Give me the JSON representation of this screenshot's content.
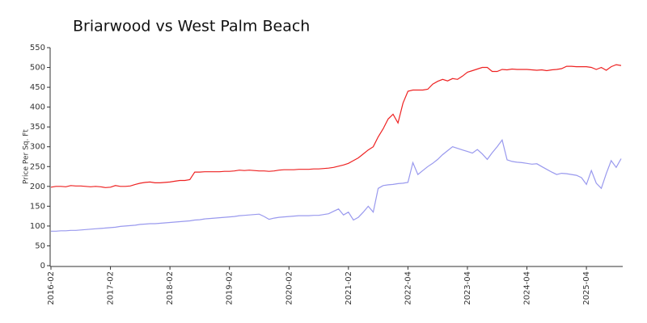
{
  "chart_data": {
    "type": "line",
    "title": "Briarwood vs West Palm Beach",
    "y_label": "Price Per Sq. Ft",
    "categories": [
      "2016-02",
      null,
      null,
      null,
      null,
      null,
      null,
      null,
      null,
      null,
      null,
      null,
      "2017-02",
      null,
      null,
      null,
      null,
      null,
      null,
      null,
      null,
      null,
      null,
      null,
      "2018-02",
      null,
      null,
      null,
      null,
      null,
      null,
      null,
      null,
      null,
      null,
      null,
      "2019-02",
      null,
      null,
      null,
      null,
      null,
      null,
      null,
      null,
      null,
      null,
      null,
      "2020-02",
      null,
      null,
      null,
      null,
      null,
      null,
      null,
      null,
      null,
      null,
      null,
      "2021-02",
      null,
      null,
      null,
      null,
      null,
      null,
      null,
      null,
      null,
      null,
      null,
      "2022-04",
      null,
      null,
      null,
      null,
      null,
      null,
      null,
      null,
      null,
      null,
      null,
      "2023-04",
      null,
      null,
      null,
      null,
      null,
      null,
      null,
      null,
      null,
      null,
      null,
      "2024-04",
      null,
      null,
      null,
      null,
      null,
      null,
      null,
      null,
      null,
      null,
      null,
      "2025-04",
      null,
      null,
      null,
      null,
      null,
      null,
      null
    ],
    "series": [
      {
        "color": "#ee2222",
        "values": [
          198,
          200,
          200,
          199,
          202,
          201,
          201,
          200,
          199,
          200,
          199,
          197,
          198,
          202,
          200,
          200,
          201,
          205,
          208,
          210,
          211,
          209,
          209,
          210,
          211,
          213,
          215,
          215,
          217,
          236,
          236,
          237,
          237,
          237,
          237,
          238,
          238,
          239,
          241,
          240,
          241,
          240,
          239,
          239,
          238,
          239,
          241,
          242,
          242,
          242,
          243,
          243,
          243,
          244,
          244,
          245,
          246,
          248,
          251,
          254,
          258,
          265,
          272,
          282,
          292,
          300,
          325,
          345,
          370,
          382,
          360,
          410,
          440,
          443,
          443,
          443,
          445,
          458,
          465,
          470,
          466,
          472,
          470,
          478,
          488,
          492,
          496,
          500,
          500,
          490,
          490,
          495,
          494,
          496,
          495,
          495,
          495,
          494,
          493,
          494,
          492,
          494,
          495,
          497,
          503,
          503,
          502,
          502,
          502,
          500,
          495,
          500,
          493,
          502,
          507,
          505
        ]
      },
      {
        "color": "#9999ee",
        "values": [
          87,
          87,
          88,
          88,
          89,
          89,
          90,
          91,
          92,
          93,
          94,
          95,
          96,
          97,
          99,
          100,
          101,
          102,
          104,
          105,
          106,
          106,
          107,
          108,
          109,
          110,
          111,
          112,
          113,
          115,
          116,
          118,
          119,
          120,
          121,
          122,
          123,
          124,
          126,
          127,
          128,
          129,
          130,
          124,
          117,
          120,
          122,
          123,
          124,
          125,
          126,
          126,
          126,
          127,
          127,
          129,
          131,
          137,
          143,
          128,
          135,
          115,
          122,
          135,
          150,
          135,
          195,
          202,
          204,
          205,
          207,
          208,
          210,
          260,
          230,
          240,
          250,
          258,
          268,
          280,
          290,
          300,
          296,
          292,
          288,
          284,
          293,
          282,
          268,
          285,
          300,
          317,
          267,
          263,
          261,
          260,
          258,
          256,
          257,
          250,
          243,
          236,
          230,
          233,
          232,
          230,
          228,
          222,
          205,
          240,
          208,
          195,
          232,
          265,
          248,
          270
        ]
      }
    ],
    "ylim": [
      0,
      550
    ],
    "yticks": [
      0,
      50,
      100,
      150,
      200,
      250,
      300,
      350,
      400,
      450,
      500,
      550
    ]
  }
}
